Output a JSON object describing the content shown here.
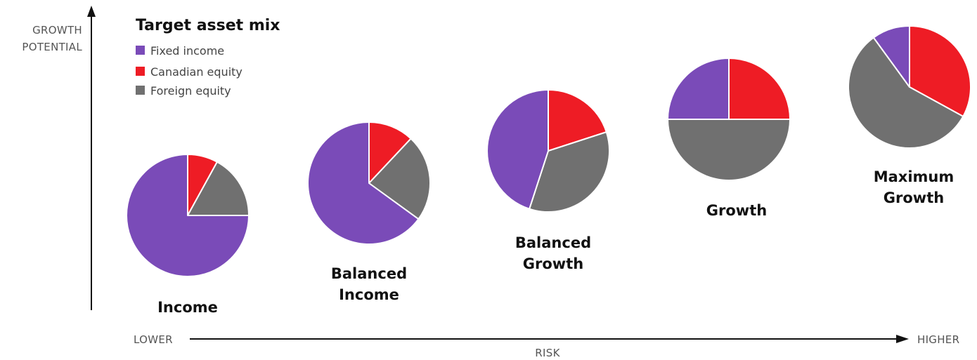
{
  "chart_data": {
    "type": "pie",
    "title": "Target asset mix",
    "series_names": [
      "Fixed income",
      "Canadian equity",
      "Foreign equity"
    ],
    "colors": {
      "Fixed income": "#7a4bb8",
      "Canadian equity": "#ee1c25",
      "Foreign equity": "#707070"
    },
    "pies": [
      {
        "label": [
          "Income"
        ],
        "values": {
          "Fixed income": 75,
          "Canadian equity": 8,
          "Foreign equity": 17
        }
      },
      {
        "label": [
          "Balanced",
          "Income"
        ],
        "values": {
          "Fixed income": 65,
          "Canadian equity": 12,
          "Foreign equity": 23
        }
      },
      {
        "label": [
          "Balanced",
          "Growth"
        ],
        "values": {
          "Fixed income": 45,
          "Canadian equity": 20,
          "Foreign equity": 35
        }
      },
      {
        "label": [
          "Growth"
        ],
        "values": {
          "Fixed income": 25,
          "Canadian equity": 25,
          "Foreign equity": 50
        }
      },
      {
        "label": [
          "Maximum",
          "Growth"
        ],
        "values": {
          "Fixed income": 10,
          "Canadian equity": 33,
          "Foreign equity": 57
        }
      }
    ],
    "y_axis": {
      "label": [
        "GROWTH",
        "POTENTIAL"
      ]
    },
    "x_axis": {
      "label": "RISK",
      "low": "LOWER",
      "high": "HIGHER"
    },
    "legend_placement": "top-left"
  }
}
